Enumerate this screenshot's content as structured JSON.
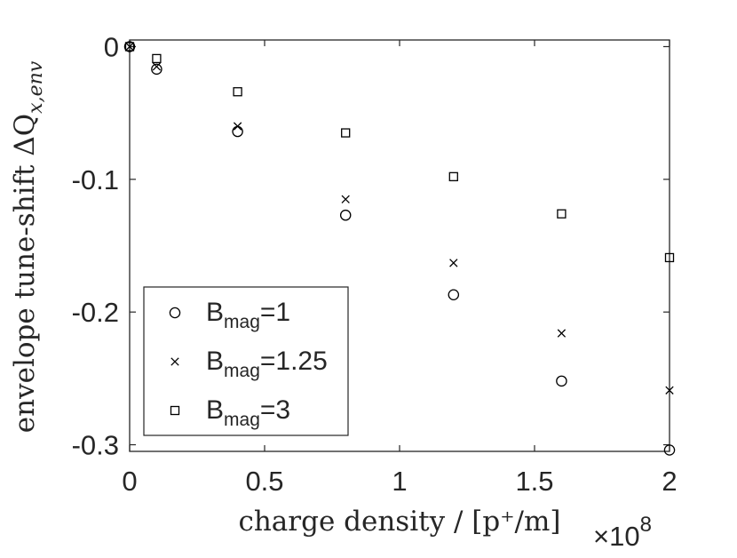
{
  "chart_data": {
    "type": "scatter",
    "x_multiplier_label": "×10",
    "x_multiplier_exponent": "8",
    "xlabel": "charge density / [p⁺/m]",
    "ylabel": "envelope tune-shift ΔQ",
    "ylabel_subscript": "x,env",
    "xlim": [
      0,
      2
    ],
    "ylim": [
      -0.305,
      0.005
    ],
    "xticks": [
      0,
      0.5,
      1,
      1.5,
      2
    ],
    "xtick_labels": [
      "0",
      "0.5",
      "1",
      "1.5",
      "2"
    ],
    "yticks": [
      0,
      -0.1,
      -0.2,
      -0.3
    ],
    "ytick_labels": [
      "0",
      "-0.1",
      "-0.2",
      "-0.3"
    ],
    "grid": false,
    "legend_position": "bottom-left",
    "series": [
      {
        "name": "B_mag=1",
        "legend_base": "B",
        "legend_sub": "mag",
        "legend_suffix": "=1",
        "marker": "circle",
        "x": [
          0,
          0.1,
          0.4,
          0.8,
          1.2,
          1.6,
          2
        ],
        "y": [
          0,
          -0.017,
          -0.064,
          -0.127,
          -0.187,
          -0.252,
          -0.304
        ]
      },
      {
        "name": "B_mag=1.25",
        "legend_base": "B",
        "legend_sub": "mag",
        "legend_suffix": "=1.25",
        "marker": "x",
        "x": [
          0,
          0.1,
          0.4,
          0.8,
          1.2,
          1.6,
          2
        ],
        "y": [
          0,
          -0.015,
          -0.06,
          -0.115,
          -0.163,
          -0.216,
          -0.259
        ]
      },
      {
        "name": "B_mag=3",
        "legend_base": "B",
        "legend_sub": "mag",
        "legend_suffix": "=3",
        "marker": "square",
        "x": [
          0,
          0.1,
          0.4,
          0.8,
          1.2,
          1.6,
          2
        ],
        "y": [
          0,
          -0.009,
          -0.034,
          -0.065,
          -0.098,
          -0.126,
          -0.159
        ]
      }
    ]
  },
  "colors": {
    "axis": "#262626",
    "marker": "#000000",
    "background": "#ffffff"
  }
}
